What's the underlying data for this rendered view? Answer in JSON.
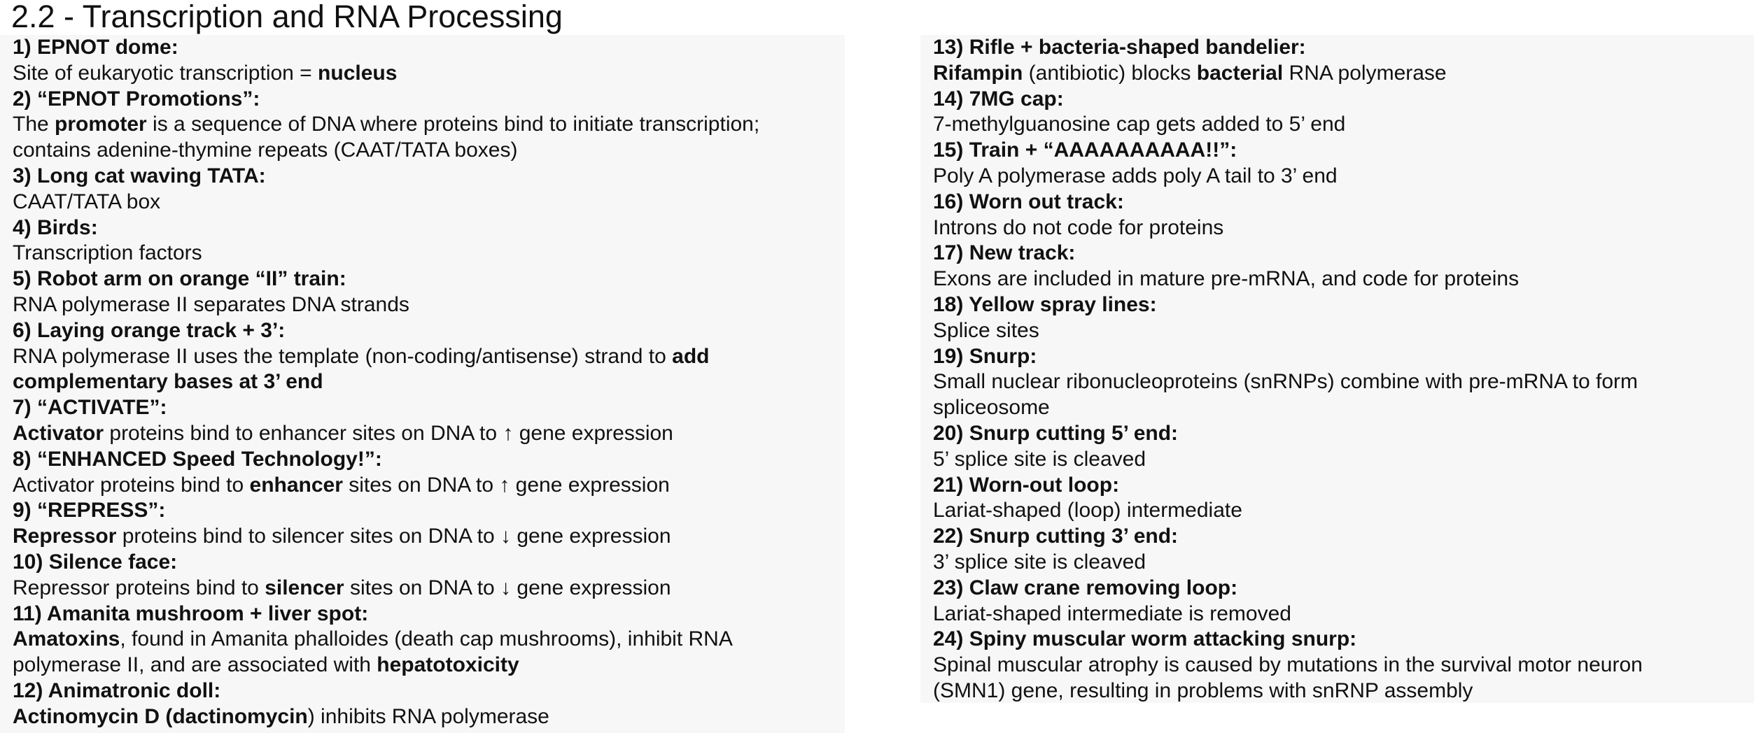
{
  "title": "2.2 - Transcription and RNA Processing",
  "left_column": [
    {
      "heading": "1) EPNOT dome:",
      "lines": [
        [
          {
            "t": "Site of eukaryotic transcription = "
          },
          {
            "t": "nucleus",
            "b": true
          }
        ]
      ]
    },
    {
      "heading": "2) “EPNOT Promotions”:",
      "lines": [
        [
          {
            "t": "The "
          },
          {
            "t": "promoter",
            "b": true
          },
          {
            "t": " is a sequence of DNA where proteins bind to initiate transcription;"
          }
        ],
        [
          {
            "t": "contains adenine-thymine repeats (CAAT/TATA boxes)"
          }
        ]
      ]
    },
    {
      "heading": "3) Long cat waving TATA:",
      "lines": [
        [
          {
            "t": "CAAT/TATA box"
          }
        ]
      ]
    },
    {
      "heading": "4) Birds:",
      "lines": [
        [
          {
            "t": "Transcription factors"
          }
        ]
      ]
    },
    {
      "heading": "5) Robot arm on orange “II” train:",
      "lines": [
        [
          {
            "t": "RNA polymerase II separates DNA strands"
          }
        ]
      ]
    },
    {
      "heading": "6) Laying orange track + 3’:",
      "lines": [
        [
          {
            "t": "RNA polymerase II uses the template (non-coding/antisense) strand to "
          },
          {
            "t": "add",
            "b": true
          }
        ],
        [
          {
            "t": "complementary bases at 3’ end",
            "b": true
          }
        ]
      ]
    },
    {
      "heading": "7) “ACTIVATE”:",
      "lines": [
        [
          {
            "t": "Activator",
            "b": true
          },
          {
            "t": " proteins bind to enhancer sites on DNA to ↑ gene expression"
          }
        ]
      ]
    },
    {
      "heading": "8) “ENHANCED Speed Technology!”:",
      "lines": [
        [
          {
            "t": "Activator proteins bind to "
          },
          {
            "t": "enhancer",
            "b": true
          },
          {
            "t": " sites on DNA to ↑ gene expression"
          }
        ]
      ]
    },
    {
      "heading": "9) “REPRESS”:",
      "lines": [
        [
          {
            "t": "Repressor",
            "b": true
          },
          {
            "t": " proteins bind to silencer sites on DNA to ↓ gene expression"
          }
        ]
      ]
    },
    {
      "heading": "10) Silence face:",
      "lines": [
        [
          {
            "t": "Repressor proteins bind to "
          },
          {
            "t": "silencer",
            "b": true
          },
          {
            "t": " sites on DNA to ↓ gene expression"
          }
        ]
      ]
    },
    {
      "heading": "11) Amanita mushroom + liver spot:",
      "lines": [
        [
          {
            "t": "Amatoxins",
            "b": true
          },
          {
            "t": ", found in Amanita phalloides (death cap mushrooms), inhibit RNA"
          }
        ],
        [
          {
            "t": "polymerase II, and are associated with "
          },
          {
            "t": "hepatotoxicity",
            "b": true
          }
        ]
      ]
    },
    {
      "heading": "12) Animatronic doll:",
      "lines": [
        [
          {
            "t": "Actinomycin D (dactinomycin",
            "b": true
          },
          {
            "t": ") inhibits RNA polymerase"
          }
        ]
      ]
    }
  ],
  "right_column": [
    {
      "heading": "13) Rifle + bacteria-shaped bandelier:",
      "lines": [
        [
          {
            "t": "Rifampin",
            "b": true
          },
          {
            "t": " (antibiotic) blocks "
          },
          {
            "t": "bacterial",
            "b": true
          },
          {
            "t": " RNA polymerase"
          }
        ]
      ]
    },
    {
      "heading": "14) 7MG cap:",
      "lines": [
        [
          {
            "t": "7-methylguanosine cap gets added to 5’ end"
          }
        ]
      ]
    },
    {
      "heading": "15) Train + “AAAAAAAAAA!!”:",
      "lines": [
        [
          {
            "t": "Poly A polymerase adds poly A tail to 3’ end"
          }
        ]
      ]
    },
    {
      "heading": "16) Worn out track:",
      "lines": [
        [
          {
            "t": "Introns do not code for proteins"
          }
        ]
      ]
    },
    {
      "heading": "17) New track:",
      "lines": [
        [
          {
            "t": "Exons are included in mature pre-mRNA, and code for proteins"
          }
        ]
      ]
    },
    {
      "heading": "18) Yellow spray lines:",
      "lines": [
        [
          {
            "t": "Splice sites"
          }
        ]
      ]
    },
    {
      "heading": "19) Snurp:",
      "lines": [
        [
          {
            "t": "Small nuclear ribonucleoproteins (snRNPs) combine with pre-mRNA to form"
          }
        ],
        [
          {
            "t": "spliceosome"
          }
        ]
      ]
    },
    {
      "heading": "20) Snurp cutting 5’ end:",
      "lines": [
        [
          {
            "t": "5’ splice site is cleaved"
          }
        ]
      ]
    },
    {
      "heading": "21) Worn-out loop:",
      "lines": [
        [
          {
            "t": "Lariat-shaped (loop) intermediate"
          }
        ]
      ]
    },
    {
      "heading": "22) Snurp cutting 3’ end:",
      "lines": [
        [
          {
            "t": "3’ splice site is cleaved"
          }
        ]
      ]
    },
    {
      "heading": "23) Claw crane removing loop:",
      "lines": [
        [
          {
            "t": "Lariat-shaped intermediate is removed"
          }
        ]
      ]
    },
    {
      "heading": "24) Spiny muscular worm attacking snurp:",
      "lines": [
        [
          {
            "t": "Spinal muscular atrophy is caused by mutations in the survival motor neuron"
          }
        ],
        [
          {
            "t": "(SMN1) gene, resulting in problems with snRNP assembly"
          }
        ]
      ]
    }
  ]
}
